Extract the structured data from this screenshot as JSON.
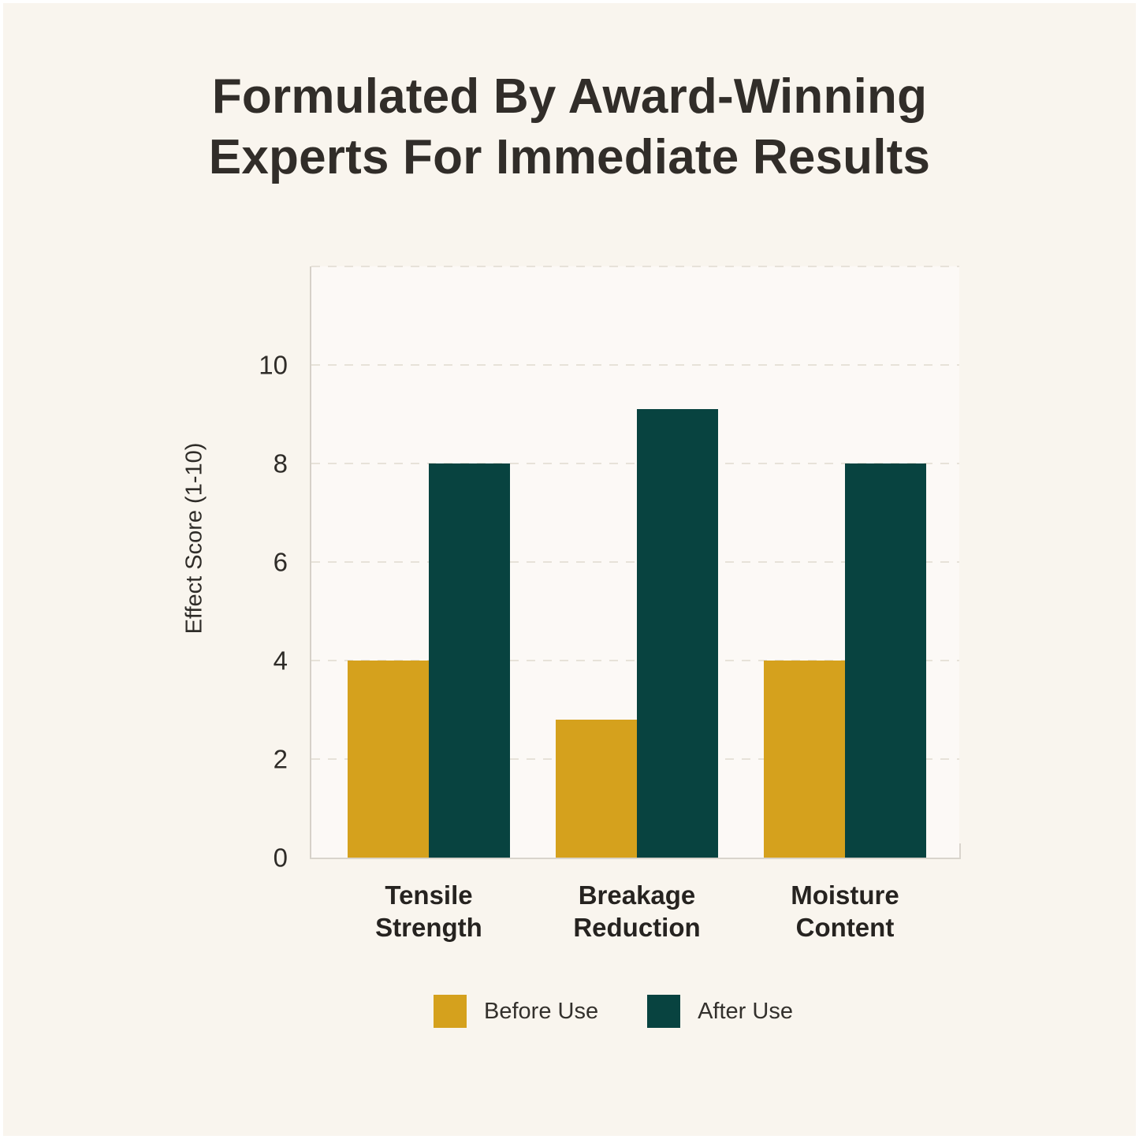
{
  "title": {
    "line1": "Formulated By Award-Winning",
    "line2": "Experts For Immediate Results"
  },
  "chart_data": {
    "type": "bar",
    "categories": [
      "Tensile Strength",
      "Breakage Reduction",
      "Moisture Content"
    ],
    "series": [
      {
        "name": "Before Use",
        "color": "#d5a11d",
        "values": [
          4,
          2.8,
          4
        ]
      },
      {
        "name": "After Use",
        "color": "#084340",
        "values": [
          8,
          9.1,
          8
        ]
      }
    ],
    "ylabel": "Effect Score (1-10)",
    "yticks": [
      0,
      2,
      4,
      6,
      8,
      10
    ],
    "ylim": [
      0,
      12
    ],
    "grid": {
      "horizontal": true,
      "style": "dashed",
      "values": [
        2,
        4,
        6,
        8,
        10,
        12
      ]
    },
    "legend_position": "bottom-center"
  },
  "palette": {
    "background": "#f9f5ee",
    "frame_border": "#ffffff",
    "title_text": "#312d29",
    "axis_text": "#2f2c28",
    "category_text": "#262320",
    "legend_text": "#33302c",
    "gridline": "#e7e2d9",
    "axis_spine": "#d6d1c9",
    "before_use": "#d5a11d",
    "after_use": "#084340"
  }
}
